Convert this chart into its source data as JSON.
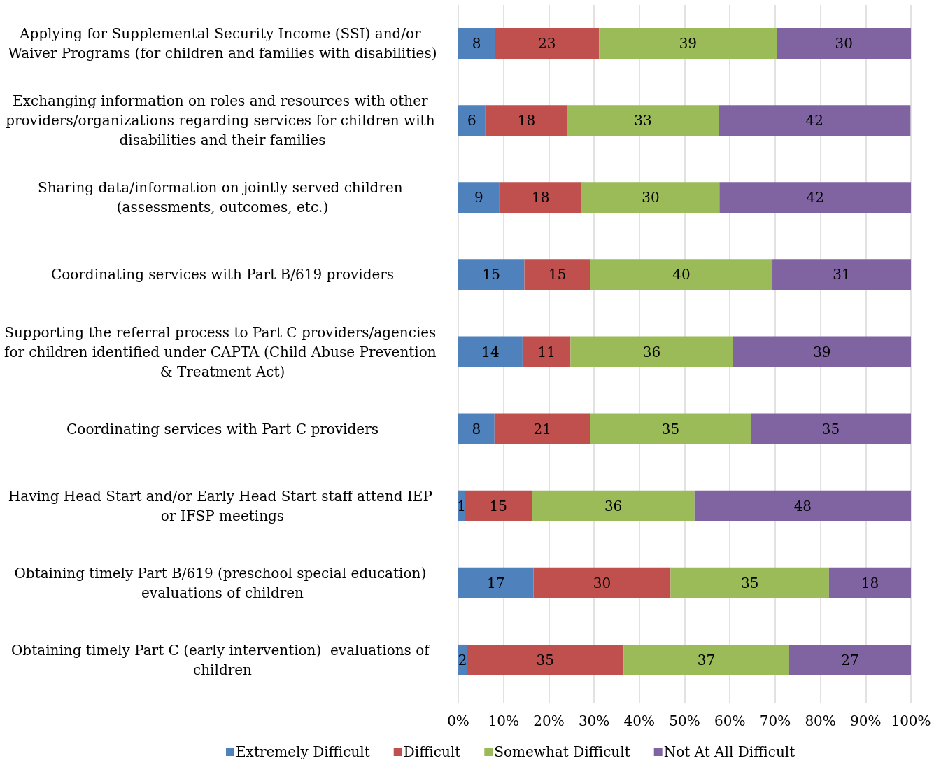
{
  "chart_data": {
    "type": "bar",
    "orientation": "horizontal",
    "stacked": true,
    "categories": [
      "Applying for Supplemental Security Income (SSI) and/or Waiver Programs (for children and families with disabilities)",
      "Exchanging information on roles and resources with other providers/organizations regarding services for children with disabilities and their families",
      "Sharing data/information on jointly served children (assessments, outcomes, etc.)",
      "Coordinating services with Part B/619 providers",
      "Supporting the referral process to Part C providers/agencies for children identified under CAPTA (Child Abuse Prevention & Treatment Act)",
      "Coordinating services with Part C providers",
      "Having Head Start and/or Early Head Start staff attend IEP or IFSP meetings",
      "Obtaining timely Part B/619 (preschool special education) evaluations of children",
      "Obtaining timely Part C (early intervention)  evaluations of children"
    ],
    "series": [
      {
        "name": "Extremely Difficult",
        "color": "#4f81bd",
        "values": [
          8.1,
          6.0,
          9.1,
          14.6,
          14.2,
          8.0,
          1.4,
          16.6,
          1.9
        ],
        "value_labels": [
          "8",
          "6",
          "9",
          "15",
          "14",
          "8",
          "1",
          "17",
          "2"
        ]
      },
      {
        "name": "Difficult",
        "color": "#c0504d",
        "values": [
          23.0,
          18.1,
          18.2,
          14.6,
          10.6,
          21.2,
          14.9,
          30.3,
          34.6
        ],
        "value_labels": [
          "23",
          "18",
          "18",
          "15",
          "11",
          "21",
          "15",
          "30",
          "35"
        ]
      },
      {
        "name": "Somewhat Difficult",
        "color": "#9bbb59",
        "values": [
          39.3,
          33.4,
          30.4,
          40.2,
          35.9,
          35.4,
          35.9,
          35.0,
          36.6
        ],
        "value_labels": [
          "39",
          "33",
          "30",
          "40",
          "36",
          "35",
          "36",
          "35",
          "37"
        ]
      },
      {
        "name": "Not At All Difficult",
        "color": "#8064a2",
        "values": [
          29.6,
          42.4,
          42.3,
          30.6,
          39.3,
          35.4,
          47.8,
          18.1,
          26.9
        ],
        "value_labels": [
          "30",
          "42",
          "42",
          "31",
          "39",
          "35",
          "48",
          "18",
          "27"
        ]
      }
    ],
    "xlim": [
      0,
      100
    ],
    "xticks": [
      {
        "value": 0,
        "label": "0%"
      },
      {
        "value": 10,
        "label": "10%"
      },
      {
        "value": 20,
        "label": "20%"
      },
      {
        "value": 30,
        "label": "30%"
      },
      {
        "value": 40,
        "label": "40%"
      },
      {
        "value": 50,
        "label": "50%"
      },
      {
        "value": 60,
        "label": "60%"
      },
      {
        "value": 70,
        "label": "70%"
      },
      {
        "value": 80,
        "label": "80%"
      },
      {
        "value": 90,
        "label": "90%"
      },
      {
        "value": 100,
        "label": "100%"
      }
    ],
    "grid": "x",
    "legend": "bottom"
  }
}
